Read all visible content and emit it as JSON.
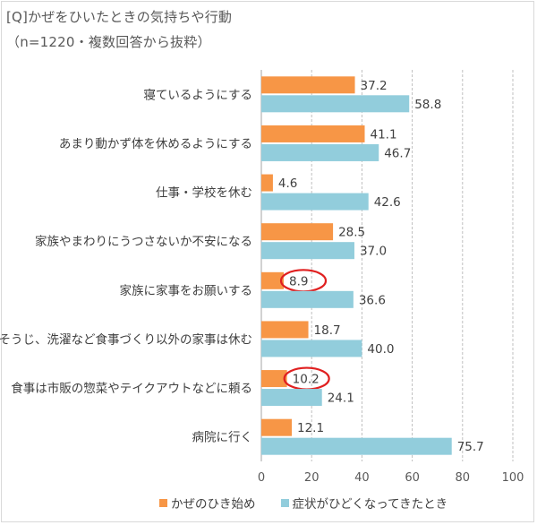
{
  "title": "[Q]かぜをひいたときの気持ちや行動",
  "subtitle": "（n=1220・複数回答から抜粋）",
  "colors": {
    "onset": "#f79646",
    "severe": "#92cddc",
    "grid": "#bfbfbf",
    "highlight": "#e02020"
  },
  "chart_data": {
    "type": "bar",
    "orientation": "horizontal",
    "categories": [
      "寝ているようにする",
      "あまり動かず体を休めるようにする",
      "仕事・学校を休む",
      "家族やまわりにうつさないか不安になる",
      "家族に家事をお願いする",
      "そうじ、洗濯など食事づくり以外の家事は休む",
      "食事は市販の惣菜やテイクアウトなどに頼る",
      "病院に行く"
    ],
    "series": [
      {
        "name": "かぜのひき始め",
        "values": [
          37.2,
          41.1,
          4.6,
          28.5,
          8.9,
          18.7,
          10.2,
          12.1
        ]
      },
      {
        "name": "症状がひどくなってきたとき",
        "values": [
          58.8,
          46.7,
          42.6,
          37.0,
          36.6,
          40.0,
          24.1,
          75.7
        ]
      }
    ],
    "xlim": [
      0,
      100
    ],
    "xticks": [
      0,
      20,
      40,
      60,
      80,
      100
    ],
    "grid": true,
    "legend_position": "bottom",
    "highlighted": [
      {
        "category_index": 4,
        "series_index": 0
      },
      {
        "category_index": 6,
        "series_index": 0
      }
    ]
  }
}
